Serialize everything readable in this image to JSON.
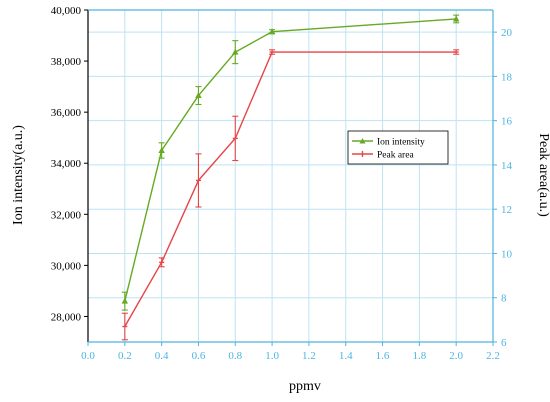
{
  "chart_data": {
    "type": "line",
    "xlabel": "ppmv",
    "ylabel_left": "Ion intensity(a.u.)",
    "ylabel_right": "Peak area(a.u.)",
    "xlim": [
      0.0,
      2.2
    ],
    "ylim_left": [
      27000,
      40000
    ],
    "ylim_right": [
      6,
      21
    ],
    "x_ticks": [
      "0.0",
      "0.2",
      "0.4",
      "0.6",
      "0.8",
      "1.0",
      "1.2",
      "1.4",
      "1.6",
      "1.8",
      "2.0",
      "2.2"
    ],
    "y_left_ticks": [
      "28,000",
      "30,000",
      "32,000",
      "34,000",
      "36,000",
      "38,000",
      "40,000"
    ],
    "y_right_ticks": [
      "6",
      "8",
      "10",
      "12",
      "14",
      "16",
      "18",
      "20"
    ],
    "grid": true,
    "legend_position": "center-right",
    "series": [
      {
        "name": "Ion intensity",
        "axis": "left",
        "color": "#66aa22",
        "marker": "triangle",
        "x": [
          0.2,
          0.4,
          0.6,
          0.8,
          1.0,
          2.0
        ],
        "y": [
          28600,
          34500,
          36650,
          38350,
          39150,
          39650
        ],
        "err": [
          350,
          300,
          350,
          450,
          80,
          150
        ]
      },
      {
        "name": "Peak area",
        "axis": "right",
        "color": "#e84545",
        "marker": "bar",
        "x": [
          0.2,
          0.4,
          0.6,
          0.8,
          1.0,
          2.0
        ],
        "y": [
          6.7,
          9.6,
          13.3,
          15.2,
          19.1,
          19.1
        ],
        "err": [
          0.6,
          0.2,
          1.2,
          1.0,
          0.1,
          0.1
        ]
      }
    ]
  },
  "colors": {
    "left_axis": "#000000",
    "right_axis": "#4db4e0",
    "grid": "#bde3f3"
  }
}
